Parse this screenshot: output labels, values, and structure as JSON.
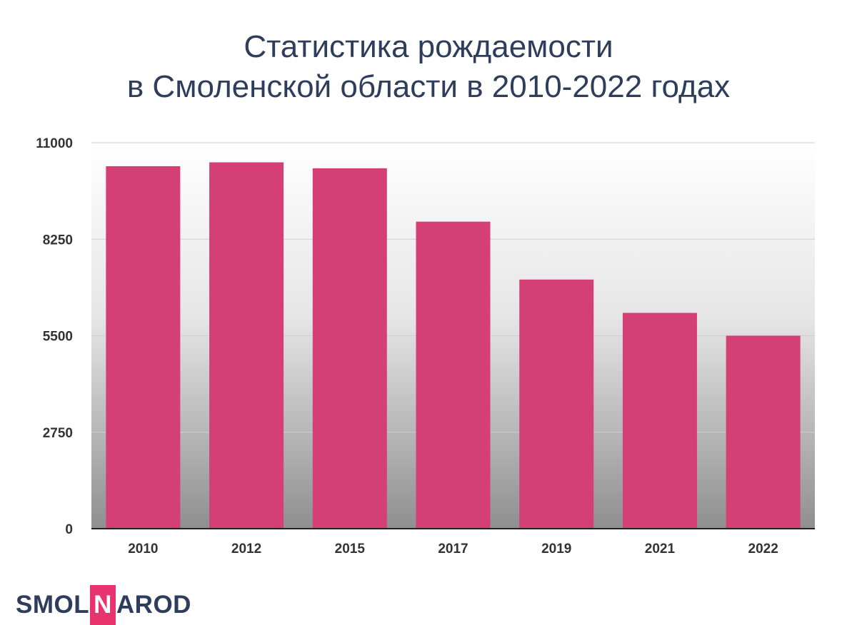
{
  "title_lines": [
    "Статистика рождаемости",
    "в Смоленской области в 2010-2022 годах"
  ],
  "logo": {
    "part1": "SMOL",
    "part2": "N",
    "part3": "AROD"
  },
  "colors": {
    "bar": "#d43f76",
    "title": "#2f3d5c",
    "badge": "#e8336e",
    "axis": "#222222"
  },
  "chart_data": {
    "type": "bar",
    "title": "Статистика рождаемости в Смоленской области в 2010-2022 годах",
    "xlabel": "",
    "ylabel": "",
    "categories": [
      "2010",
      "2012",
      "2015",
      "2017",
      "2019",
      "2021",
      "2022"
    ],
    "values": [
      10330,
      10440,
      10270,
      8750,
      7100,
      6150,
      5500
    ],
    "ylim": [
      0,
      11000
    ],
    "yticks": [
      0,
      2750,
      5500,
      8250,
      11000
    ],
    "ytick_labels": [
      "0",
      "2750",
      "5500",
      "8250",
      "11000"
    ],
    "grid": true,
    "legend": "none"
  }
}
